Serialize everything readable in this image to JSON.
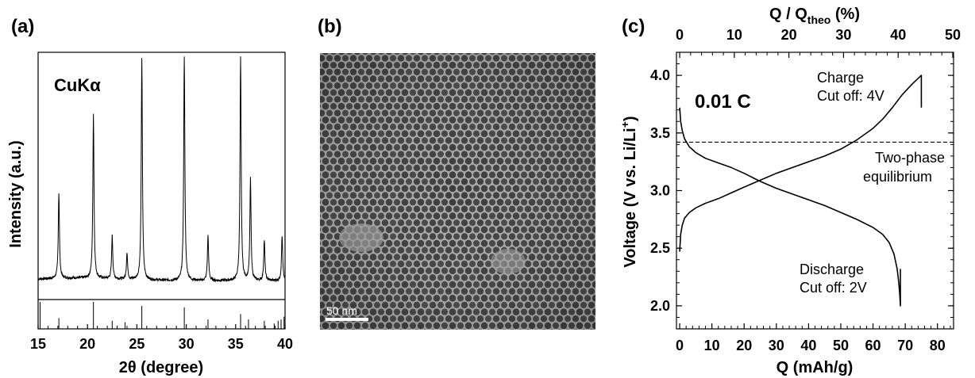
{
  "panels": {
    "a": {
      "label": "(a)"
    },
    "b": {
      "label": "(b)"
    },
    "c": {
      "label": "(c)"
    }
  },
  "colors": {
    "line": "#000000",
    "background": "#ffffff",
    "tem_bg": "#a8a8a8",
    "tem_particle": "#2a2a2a"
  },
  "chart_data": [
    {
      "panel": "(a)",
      "type": "line",
      "annotation": "CuKα",
      "xlabel": "2θ (degree)",
      "ylabel": "Intensity (a.u.)",
      "xlim": [
        15,
        40
      ],
      "xticks": [
        15,
        20,
        25,
        30,
        35,
        40
      ],
      "y_units": "arbitrary",
      "background_level": 0.02,
      "peaks": [
        {
          "x": 17.1,
          "y": 0.38
        },
        {
          "x": 20.6,
          "y": 0.73
        },
        {
          "x": 22.5,
          "y": 0.19
        },
        {
          "x": 24.0,
          "y": 0.12
        },
        {
          "x": 25.5,
          "y": 0.98
        },
        {
          "x": 29.8,
          "y": 1.0
        },
        {
          "x": 32.2,
          "y": 0.2
        },
        {
          "x": 35.5,
          "y": 0.99
        },
        {
          "x": 36.5,
          "y": 0.45
        },
        {
          "x": 37.9,
          "y": 0.18
        },
        {
          "x": 39.7,
          "y": 0.2
        }
      ],
      "reference_lines": [
        {
          "x": 15.2,
          "h": 1.0
        },
        {
          "x": 17.1,
          "h": 0.4
        },
        {
          "x": 20.6,
          "h": 1.0
        },
        {
          "x": 22.5,
          "h": 0.3
        },
        {
          "x": 23.8,
          "h": 0.25
        },
        {
          "x": 25.5,
          "h": 0.85
        },
        {
          "x": 29.8,
          "h": 0.8
        },
        {
          "x": 32.2,
          "h": 0.35
        },
        {
          "x": 35.5,
          "h": 0.55
        },
        {
          "x": 36.3,
          "h": 0.35
        },
        {
          "x": 37.9,
          "h": 0.3
        },
        {
          "x": 38.9,
          "h": 0.2
        },
        {
          "x": 39.3,
          "h": 0.3
        },
        {
          "x": 39.6,
          "h": 0.35
        },
        {
          "x": 39.9,
          "h": 0.45
        }
      ]
    },
    {
      "panel": "(b)",
      "type": "image",
      "scale_bar_label": "50 nm"
    },
    {
      "panel": "(c)",
      "type": "line",
      "xlabel": "Q (mAh/g)",
      "x2label_base": "Q / Q",
      "x2label_sub": "theo",
      "x2label_unit": " (%)",
      "ylabel_base": "Voltage (V vs. Li/Li",
      "ylabel_sup": "+",
      "ylabel_end": ")",
      "xlim": [
        -1,
        85
      ],
      "ylim": [
        1.8,
        4.2
      ],
      "xticks": [
        0,
        10,
        20,
        30,
        40,
        50,
        60,
        70,
        80
      ],
      "yticks": [
        2.0,
        2.5,
        3.0,
        3.5,
        4.0
      ],
      "x2ticks": [
        0,
        10,
        20,
        30,
        40,
        50
      ],
      "rate_label": "0.01 C",
      "equilibrium_voltage": 3.42,
      "annotations": {
        "charge": [
          "Charge",
          "Cut off: 4V"
        ],
        "discharge": [
          "Discharge",
          "Cut off: 2V"
        ],
        "equilibrium": [
          "Two-phase",
          "equilibrium"
        ]
      },
      "series": [
        {
          "name": "Charge",
          "x": [
            0,
            0.3,
            0.8,
            1.5,
            3,
            5,
            8,
            12,
            16,
            20,
            25,
            30,
            35,
            40,
            45,
            50,
            55,
            60,
            63,
            66,
            69,
            72,
            75,
            75,
            75
          ],
          "y": [
            2.47,
            2.62,
            2.7,
            2.76,
            2.81,
            2.85,
            2.89,
            2.93,
            2.98,
            3.03,
            3.09,
            3.15,
            3.2,
            3.25,
            3.3,
            3.36,
            3.44,
            3.54,
            3.62,
            3.72,
            3.83,
            3.92,
            4.0,
            3.85,
            3.72
          ]
        },
        {
          "name": "Discharge",
          "x": [
            0,
            0.3,
            0.8,
            1.5,
            3,
            5,
            8,
            12,
            16,
            20,
            25,
            30,
            35,
            40,
            45,
            50,
            55,
            60,
            63,
            65,
            66.5,
            67.5,
            68,
            68.3,
            68.5,
            68.5,
            68.5
          ],
          "y": [
            3.72,
            3.6,
            3.52,
            3.45,
            3.38,
            3.33,
            3.28,
            3.24,
            3.2,
            3.15,
            3.08,
            3.02,
            2.97,
            2.92,
            2.87,
            2.81,
            2.75,
            2.68,
            2.62,
            2.55,
            2.45,
            2.32,
            2.2,
            2.1,
            2.0,
            2.15,
            2.32
          ]
        }
      ]
    }
  ]
}
